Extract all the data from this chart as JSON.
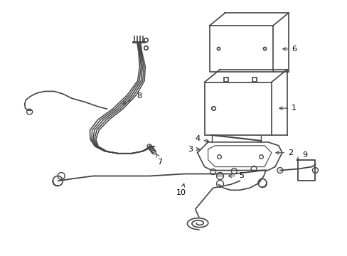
{
  "background_color": "#ffffff",
  "line_color": "#444444",
  "text_color": "#000000",
  "fig_width": 4.89,
  "fig_height": 3.6,
  "dpi": 100
}
